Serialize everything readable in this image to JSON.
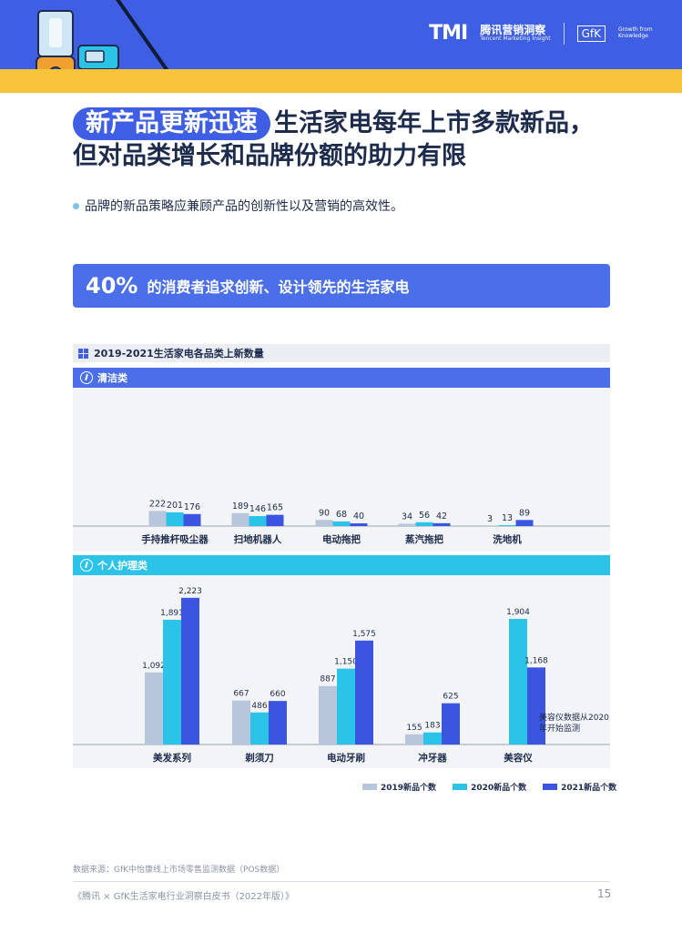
{
  "header": {
    "tmi_logo": "TMI",
    "tmi_cn": "腾讯营销洞察",
    "tmi_en": "Tencent Marketing Insight",
    "gfk_logo": "GfK",
    "gfk_tag": "Growth from Knowledge"
  },
  "title": {
    "tag": "新产品更新迅速",
    "line1": "生活家电每年上市多款新品，",
    "line2": "但对品类增长和品牌份额的助力有限"
  },
  "bullet": "品牌的新品策略应兼顾产品的创新性以及营销的高效性。",
  "highlight": {
    "pct": "40%",
    "text": "的消费者追求创新、设计领先的生活家电"
  },
  "chart_head": "2019-2021生活家电各品类上新数量",
  "sections": {
    "clean": "清洁类",
    "personal": "个人护理类"
  },
  "note": "美容仪数据从2020年开始监测",
  "legend": [
    "2019新品个数",
    "2020新品个数",
    "2021新品个数"
  ],
  "colors": {
    "s2019": "#b8c6db",
    "s2020": "#2cc3e8",
    "s2021": "#3b55e0",
    "brand_blue": "#3e5fe3",
    "yellow": "#f7c33a"
  },
  "chart_data": [
    {
      "type": "bar",
      "title": "清洁类",
      "categories": [
        "手持推杆吸尘器",
        "扫地机器人",
        "电动拖把",
        "蒸汽拖把",
        "洗地机"
      ],
      "series": [
        {
          "name": "2019新品个数",
          "values": [
            222,
            189,
            90,
            34,
            3
          ]
        },
        {
          "name": "2020新品个数",
          "values": [
            201,
            146,
            68,
            56,
            13
          ]
        },
        {
          "name": "2021新品个数",
          "values": [
            176,
            165,
            40,
            42,
            89
          ]
        }
      ]
    },
    {
      "type": "bar",
      "title": "个人护理类",
      "categories": [
        "美发系列",
        "剃须刀",
        "电动牙刷",
        "冲牙器",
        "美容仪"
      ],
      "series": [
        {
          "name": "2019新品个数",
          "values": [
            1092,
            667,
            887,
            155,
            null
          ]
        },
        {
          "name": "2020新品个数",
          "values": [
            1891,
            486,
            1150,
            183,
            1904
          ]
        },
        {
          "name": "2021新品个数",
          "values": [
            2223,
            660,
            1575,
            625,
            1168
          ]
        }
      ]
    }
  ],
  "source": "数据来源：GfK中怡康线上市场零售监测数据（POS数据）",
  "footer": "《腾讯 × GfK生活家电行业洞察白皮书（2022年版）》",
  "page": "15"
}
